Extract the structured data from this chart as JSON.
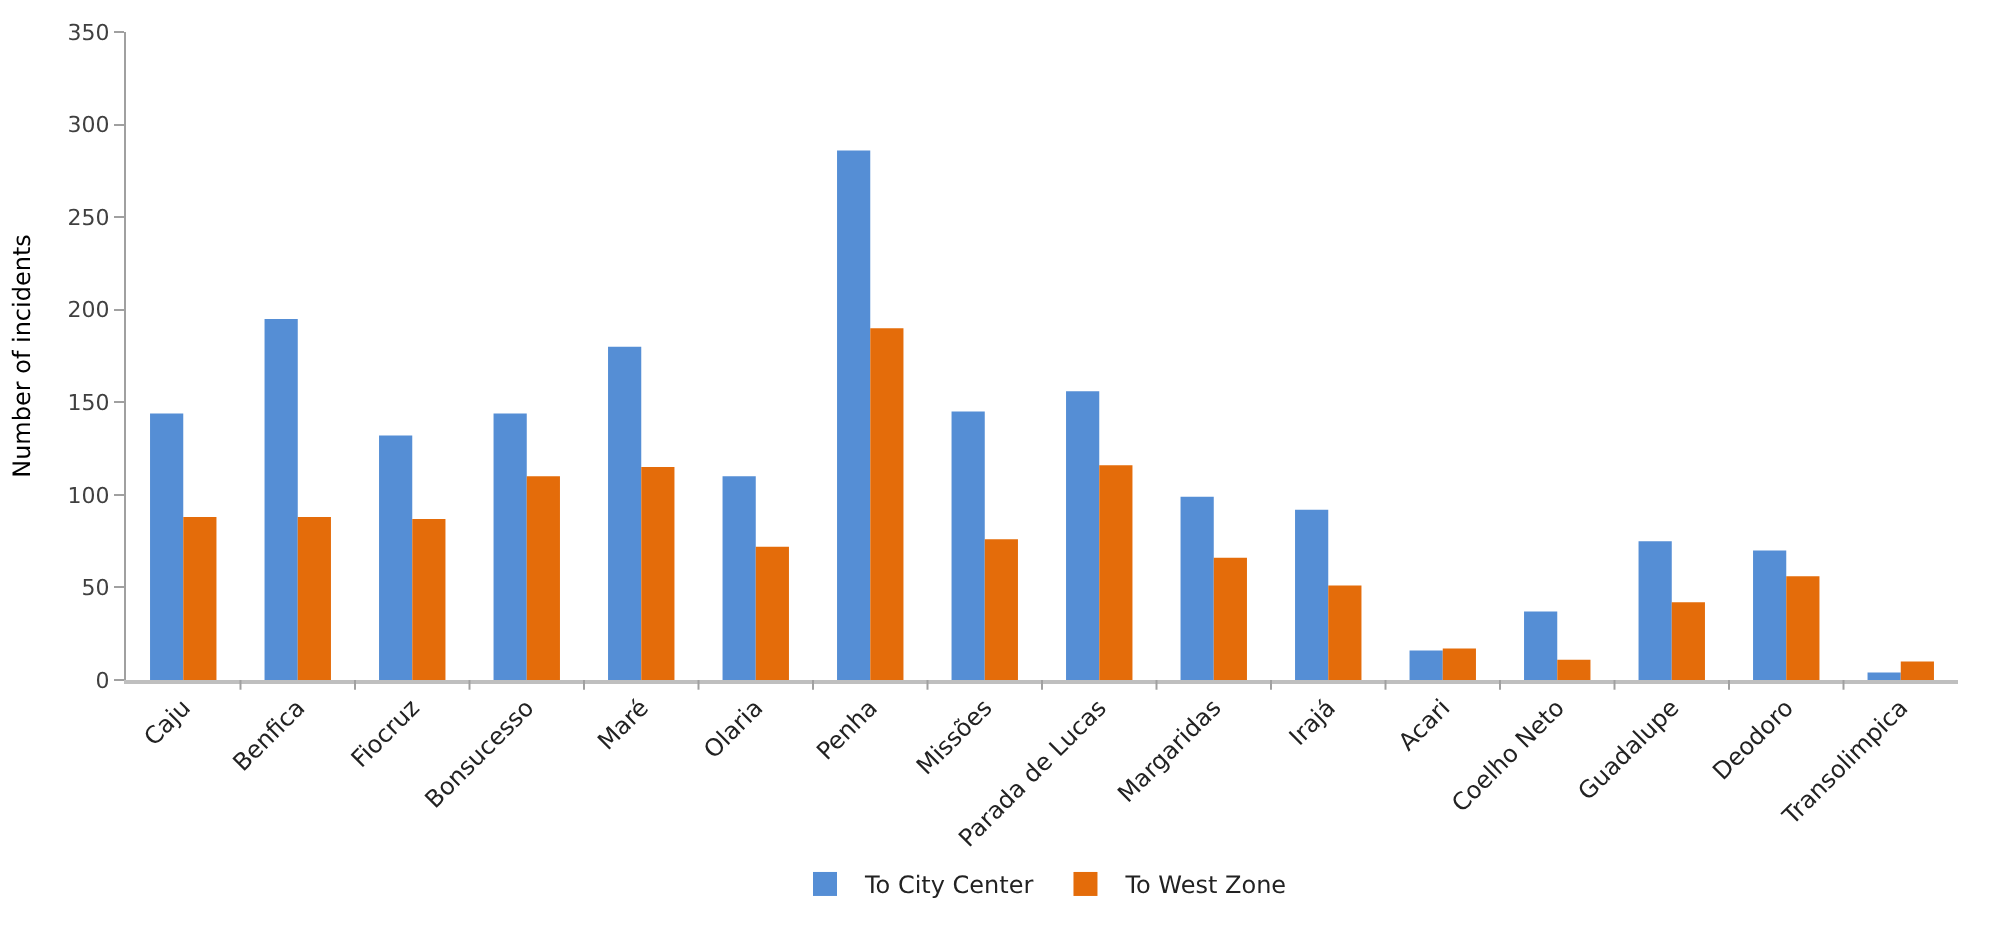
{
  "chart_data": {
    "type": "bar",
    "ylabel": "Number of incidents",
    "categories": [
      "Caju",
      "Benfica",
      "Fiocruz",
      "Bonsucesso",
      "Maré",
      "Olaria",
      "Penha",
      "Missões",
      "Parada de Lucas",
      "Margaridas",
      "Irajá",
      "Acari",
      "Coelho Neto",
      "Guadalupe",
      "Deodoro",
      "Transolimpica"
    ],
    "series": [
      {
        "name": "To City Center",
        "color": "#558ed5",
        "values": [
          144,
          195,
          132,
          144,
          180,
          110,
          286,
          145,
          156,
          99,
          92,
          16,
          37,
          75,
          70,
          4
        ]
      },
      {
        "name": "To West Zone",
        "color": "#e46c0a",
        "values": [
          88,
          88,
          87,
          110,
          115,
          72,
          190,
          76,
          116,
          66,
          51,
          17,
          11,
          42,
          56,
          10
        ]
      }
    ],
    "ylim": [
      0,
      350
    ],
    "yticks": [
      0,
      50,
      100,
      150,
      200,
      250,
      300,
      350
    ],
    "legend": "bottom"
  }
}
